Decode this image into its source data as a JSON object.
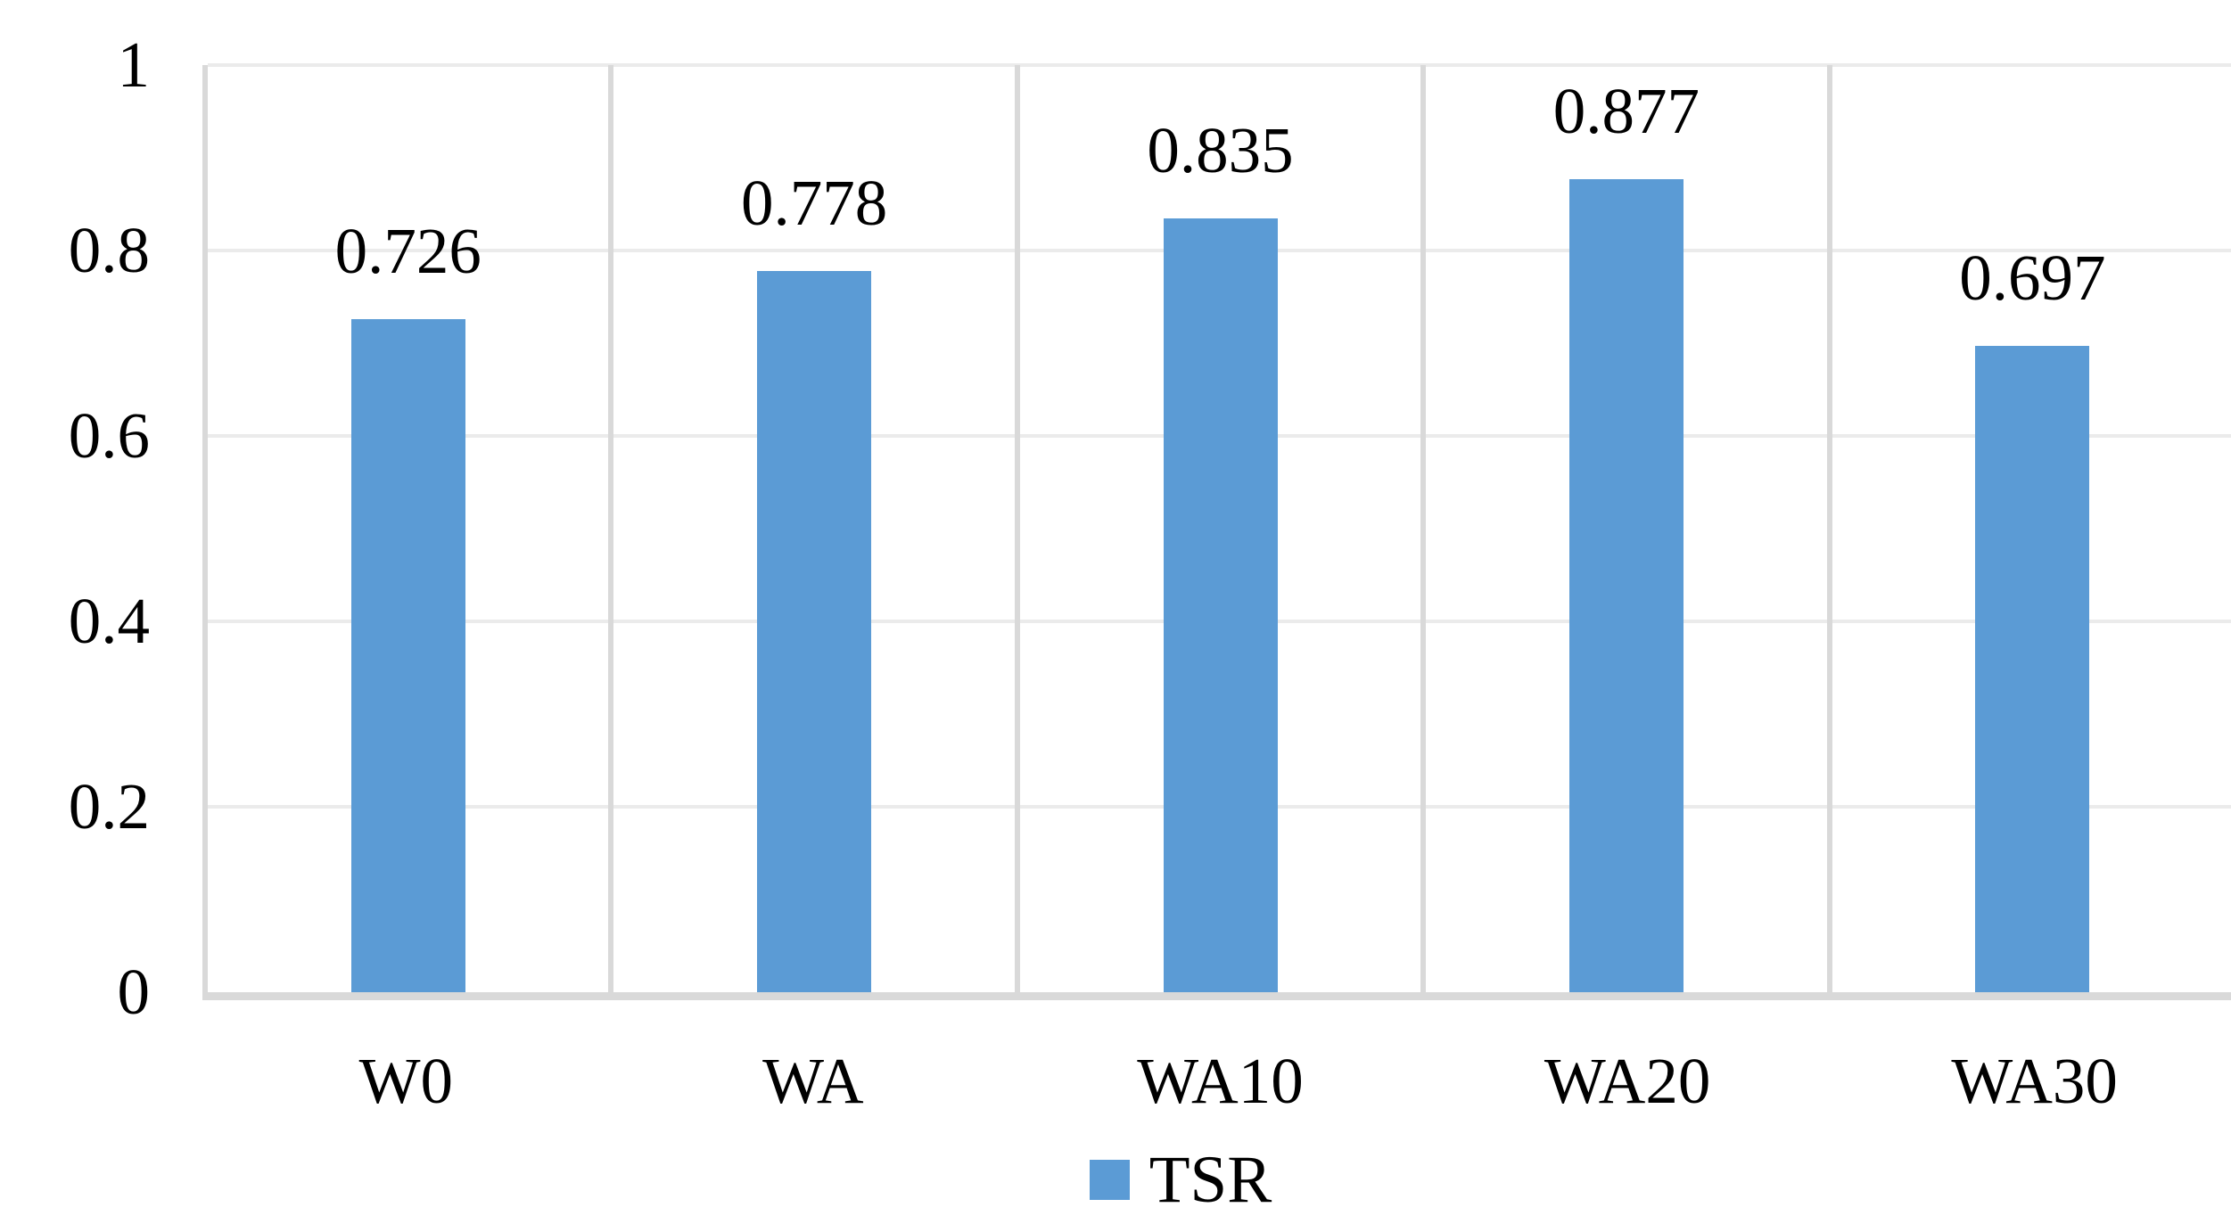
{
  "chart_data": {
    "type": "bar",
    "title": "",
    "xlabel": "",
    "ylabel": "",
    "categories": [
      "W0",
      "WA",
      "WA10",
      "WA20",
      "WA30"
    ],
    "series": [
      {
        "name": "TSR",
        "values": [
          0.726,
          0.778,
          0.835,
          0.877,
          0.697
        ],
        "data_labels": [
          "0.726",
          "0.778",
          "0.835",
          "0.877",
          "0.697"
        ],
        "color": "#5B9BD5"
      }
    ],
    "ylim": [
      0,
      1
    ],
    "yticks": {
      "values": [
        0,
        0.2,
        0.4,
        0.6,
        0.8,
        1
      ],
      "labels": [
        "0",
        "0.2",
        "0.4",
        "0.6",
        "0.8",
        "1"
      ]
    },
    "grid": true,
    "legend_position": "bottom",
    "legend_entries": [
      "TSR"
    ]
  },
  "colors": {
    "bar": "#5B9BD5",
    "gridline": "#EBEBEB",
    "axis_line": "#D9D9D9",
    "text": "#000000",
    "background": "#FFFFFF"
  }
}
